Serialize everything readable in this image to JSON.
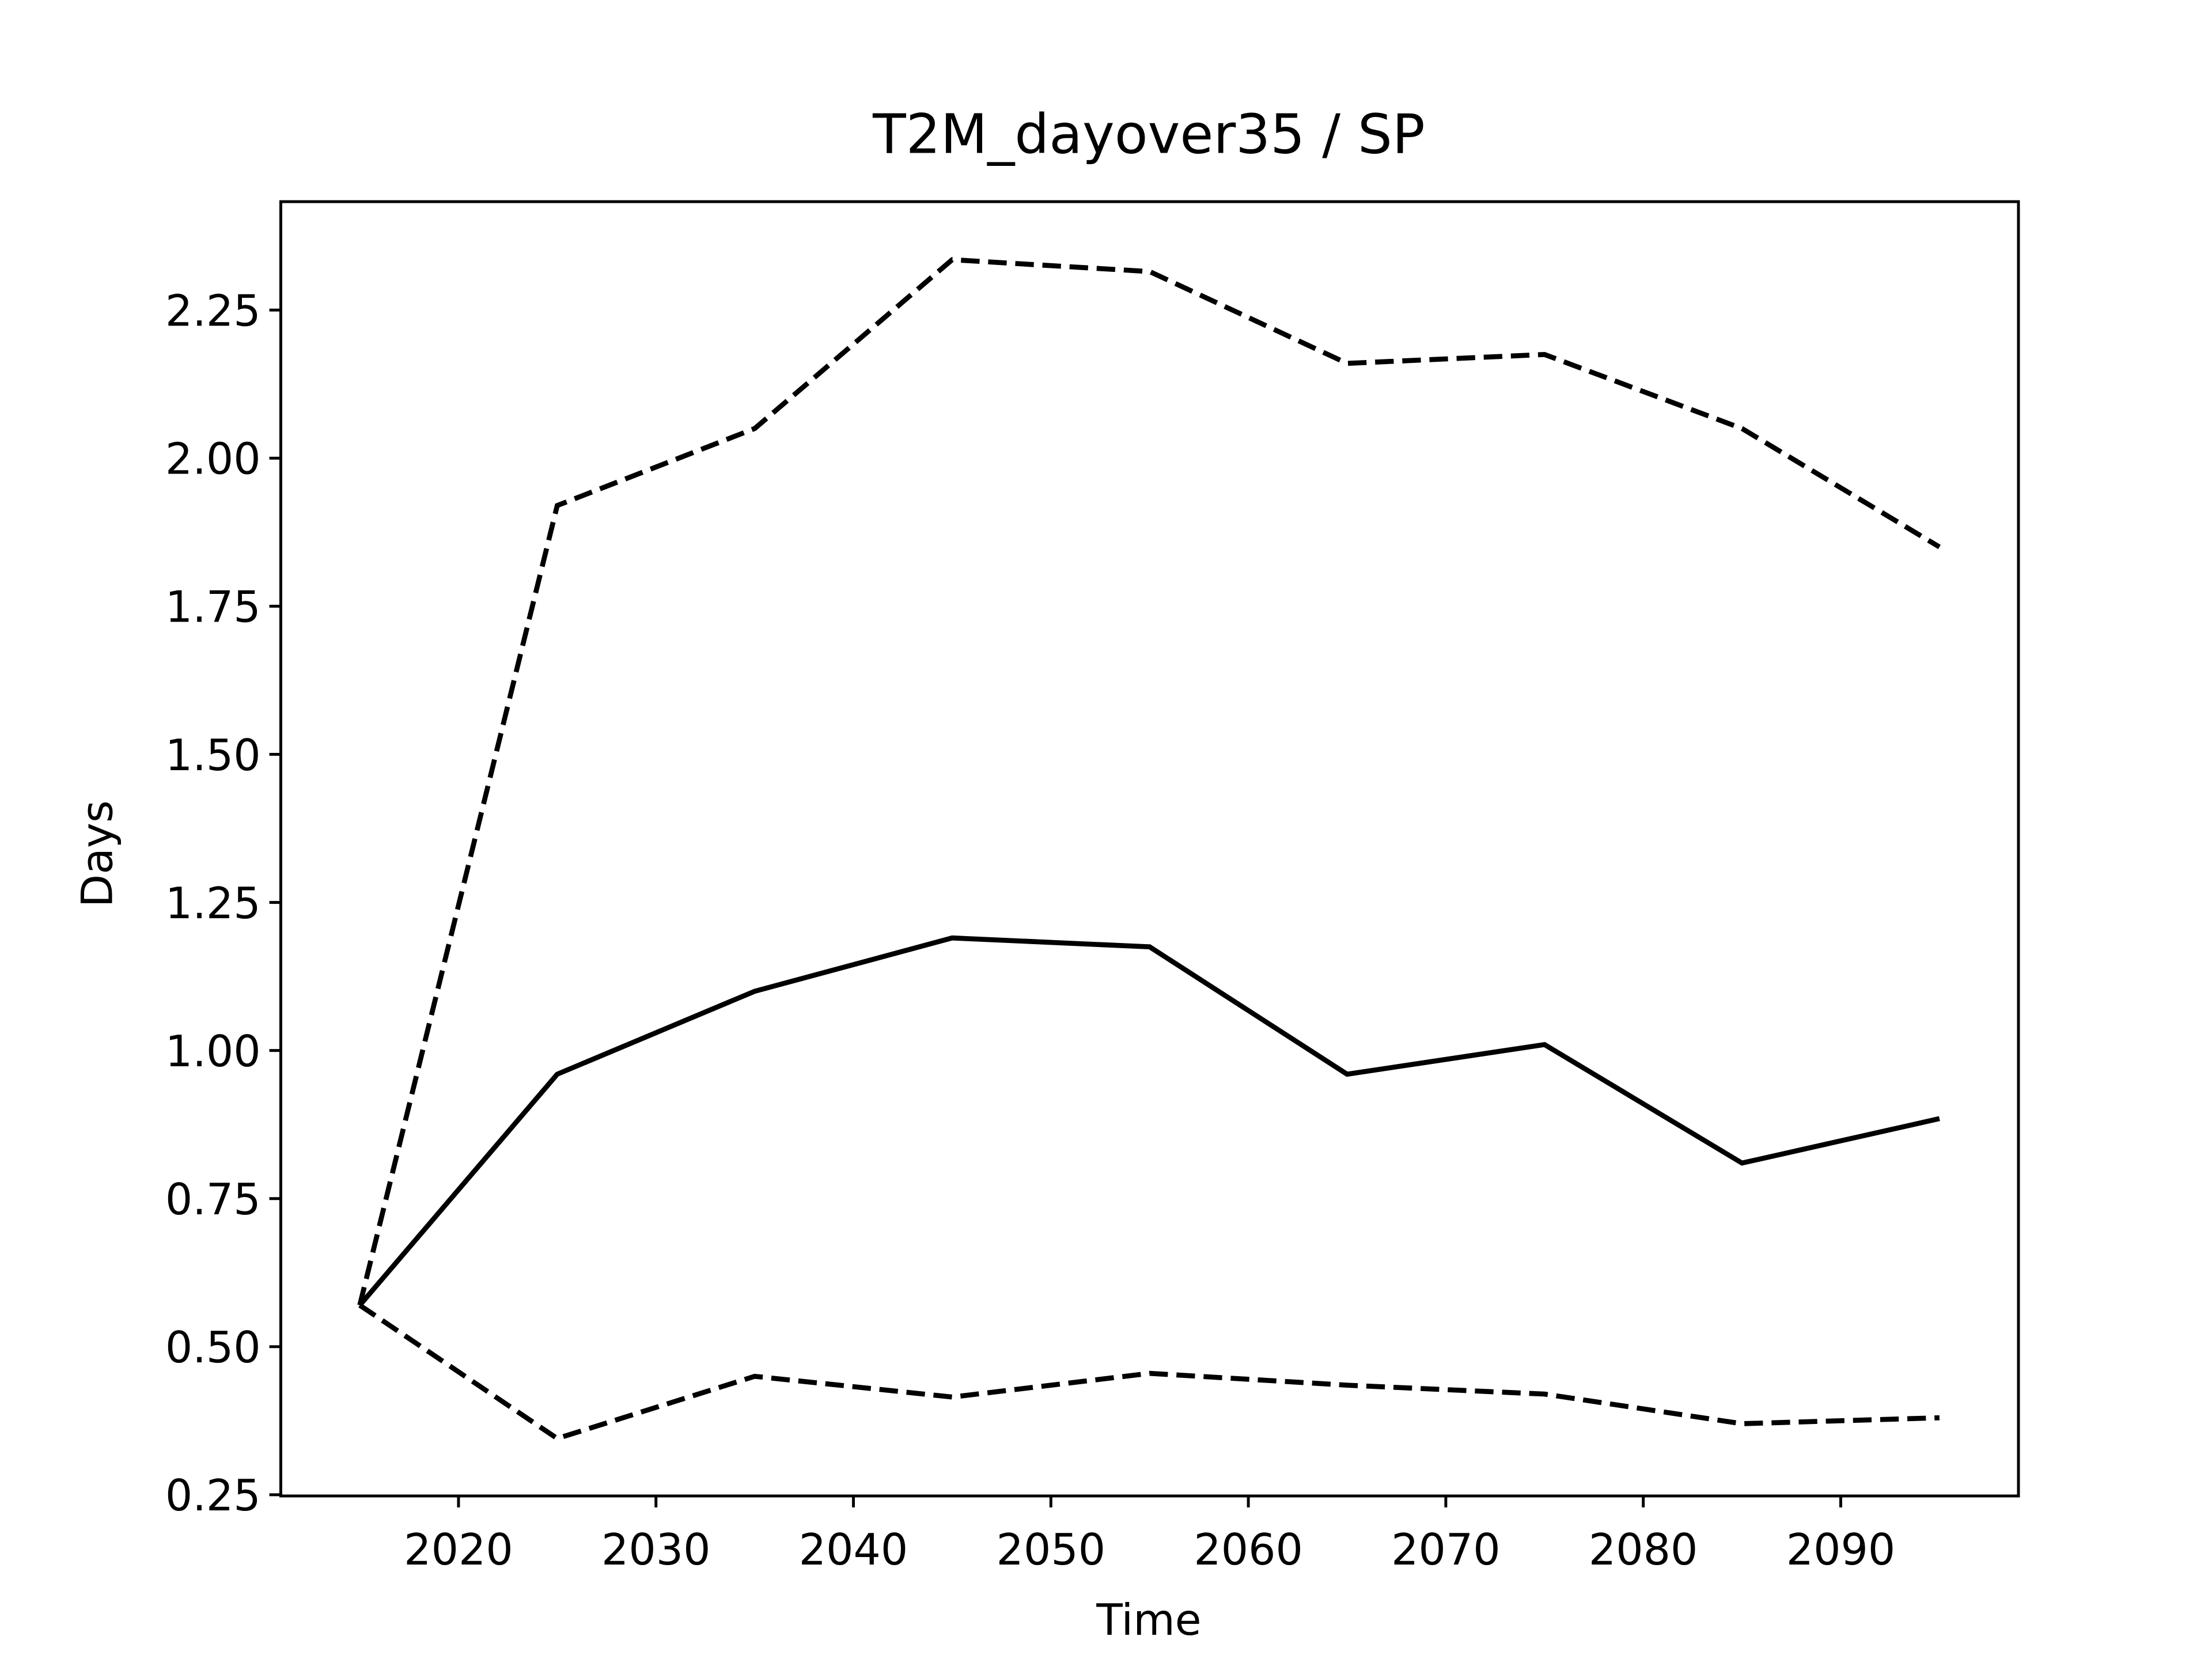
{
  "chart_data": {
    "type": "line",
    "title": "T2M_dayover35 / SP",
    "xlabel": "Time",
    "ylabel": "Days",
    "x": [
      2015,
      2025,
      2035,
      2045,
      2055,
      2065,
      2075,
      2085,
      2095
    ],
    "series": [
      {
        "color": "#000000",
        "linestyle": "solid",
        "values": [
          0.57,
          0.96,
          1.1,
          1.19,
          1.175,
          0.96,
          1.01,
          0.81,
          0.885
        ]
      },
      {
        "color": "#000000",
        "linestyle": "dashed",
        "values": [
          0.57,
          1.92,
          2.05,
          2.335,
          2.315,
          2.16,
          2.175,
          2.05,
          1.85
        ]
      },
      {
        "color": "#000000",
        "linestyle": "dashed",
        "values": [
          0.57,
          0.345,
          0.45,
          0.415,
          0.455,
          0.435,
          0.42,
          0.37,
          0.38
        ]
      }
    ],
    "xlim": [
      2011,
      2099
    ],
    "xticks": [
      2020,
      2030,
      2040,
      2050,
      2060,
      2070,
      2080,
      2090
    ],
    "ylim": [
      0.248,
      2.433
    ],
    "yticks": [
      0.25,
      {
        "value": 0.5,
        "label": "0.50"
      },
      0.75,
      {
        "value": 1,
        "label": "1.00"
      },
      1.25,
      {
        "value": 1.5,
        "label": "1.50"
      },
      1.75,
      {
        "value": 2,
        "label": "2.00"
      },
      2.25
    ],
    "grid": false
  }
}
